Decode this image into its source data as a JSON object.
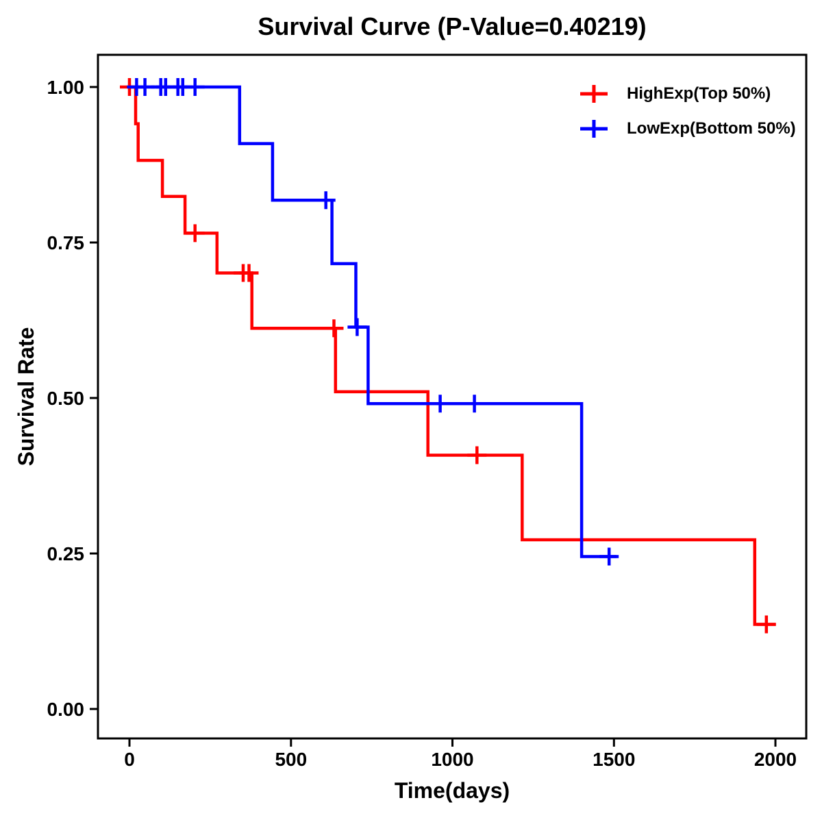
{
  "chart_data": {
    "type": "line",
    "subtype": "kaplan-meier-step-survival",
    "title": "Survival Curve (P-Value=0.40219)",
    "p_value_shown_in_title": "0.40219",
    "xlabel": "Time(days)",
    "ylabel": "Survival Rate",
    "grid": false,
    "legend_position": "top-right-inside",
    "frame_color": "#000000",
    "background_color": "#ffffff",
    "x_range": [
      0,
      2000
    ],
    "y_range": [
      0,
      1
    ],
    "x_ticks": [
      {
        "v": 0,
        "label": "0"
      },
      {
        "v": 500,
        "label": "500"
      },
      {
        "v": 1000,
        "label": "1000"
      },
      {
        "v": 1500,
        "label": "1500"
      },
      {
        "v": 2000,
        "label": "2000"
      }
    ],
    "y_ticks": [
      {
        "v": 1.0,
        "label": "1.00"
      },
      {
        "v": 0.75,
        "label": "0.75"
      },
      {
        "v": 0.5,
        "label": "0.50"
      },
      {
        "v": 0.25,
        "label": "0.25"
      },
      {
        "v": 0.0,
        "label": "0.00"
      }
    ],
    "series": [
      {
        "name": "HighExp(Top 50%)",
        "color": "#FF0000",
        "marker": "plus-censor",
        "steps": [
          [
            0,
            1.0
          ],
          [
            19,
            0.941
          ],
          [
            27,
            0.882
          ],
          [
            102,
            0.824
          ],
          [
            172,
            0.765
          ],
          [
            271,
            0.701
          ],
          [
            379,
            0.612
          ],
          [
            638,
            0.51
          ],
          [
            924,
            0.408
          ],
          [
            1216,
            0.272
          ],
          [
            1936,
            0.136
          ]
        ],
        "end_time": 2000,
        "censors": [
          [
            0,
            1.0
          ],
          [
            203,
            0.765
          ],
          [
            352,
            0.701
          ],
          [
            370,
            0.701
          ],
          [
            633,
            0.612
          ],
          [
            1076,
            0.408
          ],
          [
            1972,
            0.136
          ]
        ]
      },
      {
        "name": "LowExp(Bottom 50%)",
        "color": "#0000FF",
        "marker": "plus-censor",
        "steps": [
          [
            0,
            1.0
          ],
          [
            341,
            0.909
          ],
          [
            443,
            0.818
          ],
          [
            627,
            0.716
          ],
          [
            701,
            0.614
          ],
          [
            739,
            0.491
          ],
          [
            1400,
            0.245
          ]
        ],
        "end_time": 1508,
        "censors": [
          [
            22,
            1.0
          ],
          [
            48,
            1.0
          ],
          [
            97,
            1.0
          ],
          [
            112,
            1.0
          ],
          [
            150,
            1.0
          ],
          [
            165,
            1.0
          ],
          [
            203,
            1.0
          ],
          [
            608,
            0.818
          ],
          [
            705,
            0.614
          ],
          [
            962,
            0.491
          ],
          [
            1068,
            0.491
          ],
          [
            1485,
            0.245
          ]
        ]
      }
    ]
  }
}
